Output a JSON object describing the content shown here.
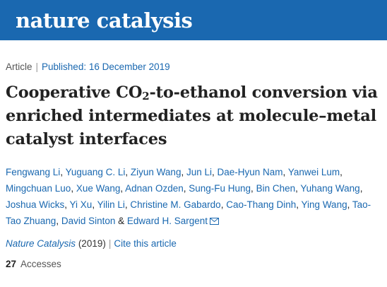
{
  "header": {
    "logo_text": "nature catalysis",
    "background_color": "#1a68b0"
  },
  "article_meta": {
    "type": "Article",
    "published_label": "Published:",
    "published_date": "16 December 2019"
  },
  "title": {
    "part1": "Cooperative CO",
    "subscript": "2",
    "part2": "-to-ethanol conversion via enriched intermediates at molecule–metal catalyst interfaces"
  },
  "authors": [
    "Fengwang Li",
    "Yuguang C. Li",
    "Ziyun Wang",
    "Jun Li",
    "Dae-Hyun Nam",
    "Yanwei Lum",
    "Mingchuan Luo",
    "Xue Wang",
    "Adnan Ozden",
    "Sung-Fu Hung",
    "Bin Chen",
    "Yuhang Wang",
    "Joshua Wicks",
    "Yi Xu",
    "Yilin Li",
    "Christine M. Gabardo",
    "Cao-Thang Dinh",
    "Ying Wang",
    "Tao-Tao Zhuang",
    "David Sinton"
  ],
  "authors_conjunction": "&",
  "last_author": "Edward H. Sargent",
  "corresponding_icon": "mail-icon",
  "journal": {
    "name": "Nature Catalysis",
    "year": "(2019)",
    "cite_label": "Cite this article"
  },
  "metrics": {
    "accesses_count": "27",
    "accesses_label": "Accesses"
  }
}
